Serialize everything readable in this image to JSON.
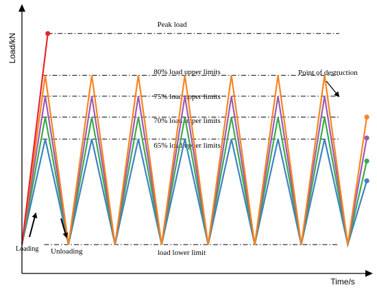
{
  "chart_data": {
    "type": "line",
    "title": "",
    "xlabel": "Time/s",
    "ylabel": "Load/kN",
    "xlim": [
      0,
      100
    ],
    "ylim": [
      0,
      100
    ],
    "grid": false,
    "x": [
      0,
      13.5,
      27,
      40.5,
      54,
      67.5,
      81,
      94.5
    ],
    "reference_lines": [
      {
        "name": "peak",
        "label": "Peak load",
        "y": 96,
        "x_end": 92
      },
      {
        "name": "upper-80",
        "label": "80% load upper limits",
        "y": 77,
        "x_end": 92
      },
      {
        "name": "upper-75",
        "label": "75% load upper limits",
        "y": 67.5,
        "x_end": 92
      },
      {
        "name": "upper-70",
        "label": "70% load upper limits",
        "y": 58,
        "x_end": 92
      },
      {
        "name": "upper-65",
        "label": "65% load upper limits",
        "y": 48,
        "x_end": 92
      },
      {
        "name": "lower",
        "label": "load lower limit",
        "y": 0,
        "x_end": 92
      }
    ],
    "peak_series": {
      "color": "#e8242c",
      "x": [
        0,
        7.5
      ],
      "y": [
        0,
        96
      ]
    },
    "series": [
      {
        "color": "#f7841e",
        "peak": 77,
        "end_value": 58
      },
      {
        "color": "#9b59b6",
        "peak": 67.5,
        "end_value": 48.5
      },
      {
        "color": "#3aaa48",
        "peak": 58,
        "end_value": 38
      },
      {
        "color": "#3c82c0",
        "peak": 48,
        "end_value": 29
      }
    ],
    "annotations": [
      {
        "name": "loading-label",
        "text": "Loading"
      },
      {
        "name": "unloading-label",
        "text": "Unloading"
      },
      {
        "name": "point-of-destruction-label",
        "text": "Point of destruction"
      }
    ]
  }
}
